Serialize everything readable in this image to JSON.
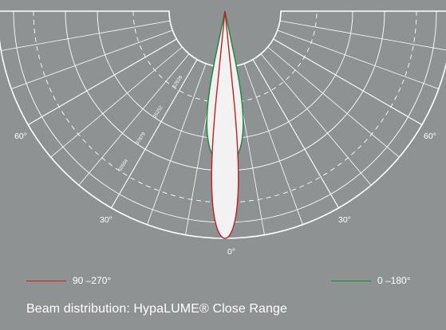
{
  "chart_data": {
    "type": "polar",
    "angle_labels": {
      "right_60": "60°",
      "left_60": "60°",
      "left_30": "30°",
      "right_30": "30°",
      "zero": "0°"
    },
    "ring_labels": [
      "12626",
      "25252",
      "37879",
      "50504"
    ],
    "series": [
      {
        "name": "90 –270°",
        "color": "#c11f28",
        "half_width_deg": 6,
        "peak": 1.0
      },
      {
        "name": "0 –180°",
        "color": "#138a3a",
        "half_width_deg": 12,
        "peak": 0.68
      }
    ],
    "grid": true
  },
  "legend": {
    "red_label": "90 –270°",
    "green_label": "0 –180°",
    "red_color": "#c11f28",
    "green_color": "#138a3a"
  },
  "caption": "Beam distribution: HypaLUME® Close Range"
}
